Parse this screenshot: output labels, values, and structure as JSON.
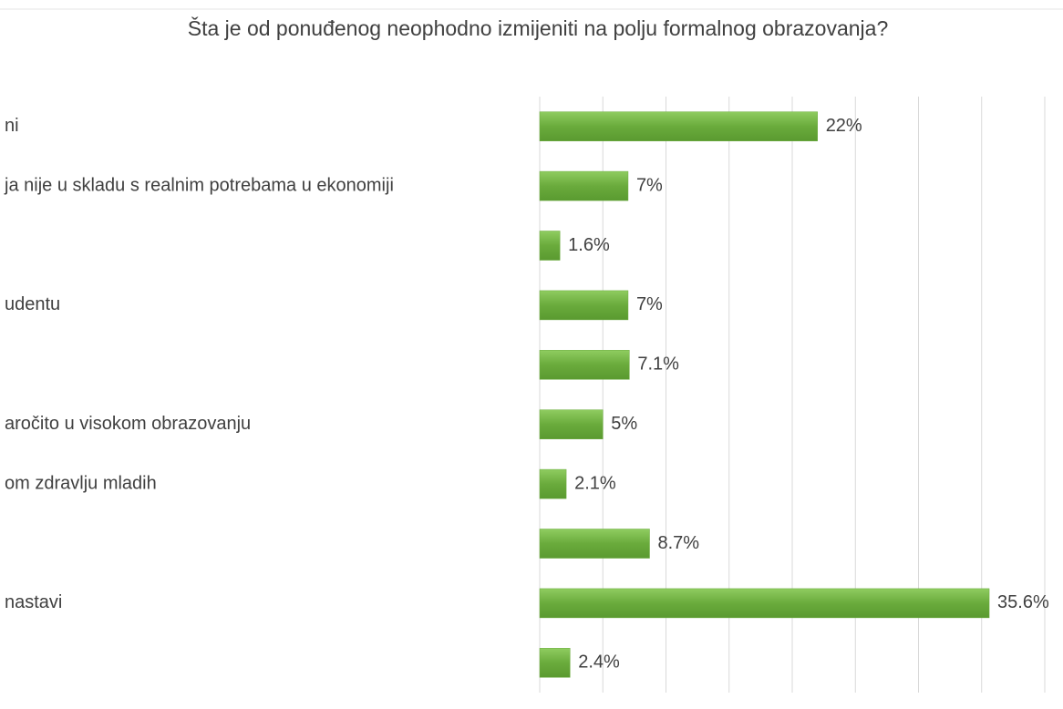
{
  "chart_data": {
    "type": "barh",
    "title": "Šta je od ponuđenog neophodno izmijeniti na polju formalnog obrazovanja?",
    "categories": [
      "ni",
      "ja nije u skladu s realnim potrebama u ekonomiji",
      null,
      "udentu",
      null,
      "aročito u visokom obrazovanju",
      "om zdravlju mladih",
      null,
      "nastavi",
      null
    ],
    "values": [
      22,
      7,
      1.6,
      7,
      7.1,
      5,
      2.1,
      8.7,
      35.6,
      2.4
    ],
    "value_labels": [
      "22%",
      "7%",
      "1.6%",
      "7%",
      "7.1%",
      "5%",
      "2.1%",
      "8.7%",
      "35.6%",
      "2.4%"
    ],
    "color": "#6aab3c",
    "xlim": [
      0,
      40
    ],
    "xticks": [
      0,
      5,
      10,
      15,
      20,
      25,
      30,
      35,
      40
    ],
    "grid": true
  }
}
